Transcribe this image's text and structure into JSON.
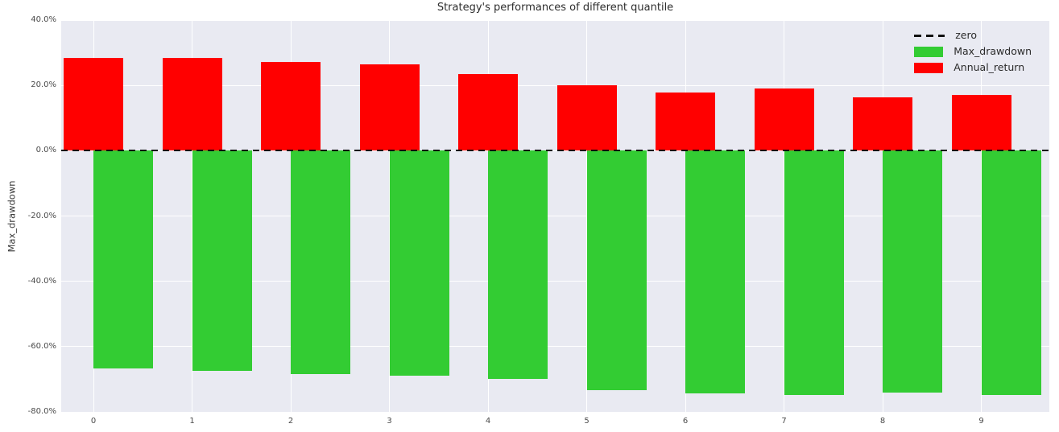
{
  "figure": {
    "title": "Strategy's performances of different quantile",
    "ylabel": "Max_drawdown"
  },
  "legend": {
    "items": [
      {
        "label": "zero",
        "type": "dashed-line",
        "color": "#111111"
      },
      {
        "label": "Max_drawdown",
        "type": "patch",
        "color": "#33cc33"
      },
      {
        "label": "Annual_return",
        "type": "patch",
        "color": "#ff0000"
      }
    ]
  },
  "chart_data": {
    "type": "bar",
    "title": "Strategy's performances of different quantile",
    "xlabel": "",
    "ylabel": "Max_drawdown",
    "categories": [
      "0",
      "1",
      "2",
      "3",
      "4",
      "5",
      "6",
      "7",
      "8",
      "9"
    ],
    "series": [
      {
        "name": "Annual_return",
        "color": "#ff0000",
        "align": "center",
        "values": [
          28.3,
          28.5,
          27.2,
          26.5,
          23.5,
          20.0,
          17.8,
          19.0,
          16.3,
          17.2
        ]
      },
      {
        "name": "Max_drawdown",
        "color": "#33cc33",
        "align": "edge-right",
        "values": [
          -66.7,
          -67.5,
          -68.4,
          -69.0,
          -69.9,
          -73.3,
          -74.4,
          -74.9,
          -74.0,
          -74.8
        ]
      }
    ],
    "yticks": [
      "40.0%",
      "20.0%",
      "0.0%",
      "-20.0%",
      "-40.0%",
      "-60.0%",
      "-80.0%"
    ],
    "ytick_values": [
      40,
      20,
      0,
      -20,
      -40,
      -60,
      -80
    ],
    "ylim": [
      -80,
      40
    ],
    "zero_line": true,
    "grid": true,
    "legend_position": "upper right",
    "plot_background": "#e9eaf2",
    "grid_color": "#ffffff"
  }
}
